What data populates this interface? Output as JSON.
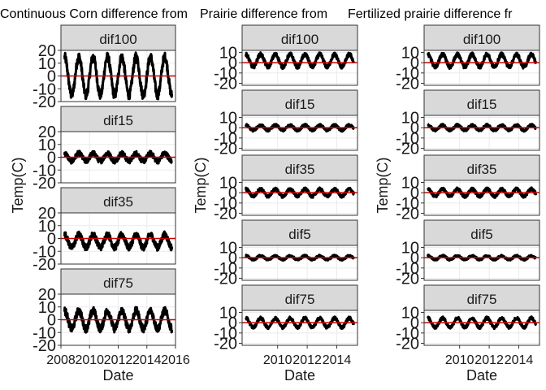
{
  "chart_data": [
    {
      "type": "line",
      "title": "Continuous Corn difference from",
      "xlabel": "Date",
      "ylabel": "Temp(C)",
      "x_range": [
        2008,
        2016
      ],
      "x_ticks": [
        "2008",
        "2010",
        "2012",
        "2014",
        "2016"
      ],
      "y_ticks": [
        "-20",
        "-10",
        "0",
        "10",
        "20"
      ],
      "reference_line": {
        "y": 0,
        "color": "#cc0000"
      },
      "panels": [
        {
          "name": "dif100",
          "ylim": [
            -20,
            20
          ],
          "amplitude": 15,
          "offset": 0,
          "noise": 3.5
        },
        {
          "name": "dif15",
          "ylim": [
            -20,
            20
          ],
          "amplitude": 3,
          "offset": 0,
          "noise": 2
        },
        {
          "name": "dif35",
          "ylim": [
            -20,
            20
          ],
          "amplitude": 5,
          "offset": -2,
          "noise": 2.5
        },
        {
          "name": "dif75",
          "ylim": [
            -20,
            20
          ],
          "amplitude": 7,
          "offset": 0,
          "noise": 3
        }
      ]
    },
    {
      "type": "line",
      "title": "Prairie difference from",
      "xlabel": "Date",
      "ylabel": "Temp(C)",
      "x_range": [
        2007.6,
        2015.4
      ],
      "x_ticks": [
        "2010",
        "2012",
        "2014"
      ],
      "y_ticks": [
        "-20",
        "-10",
        "0",
        "10"
      ],
      "reference_line": {
        "y": 0,
        "color": "#cc0000"
      },
      "panels": [
        {
          "name": "dif100",
          "ylim": [
            -22,
            12
          ],
          "amplitude": 6,
          "offset": 2,
          "noise": 2
        },
        {
          "name": "dif15",
          "ylim": [
            -22,
            12
          ],
          "amplitude": 2.5,
          "offset": 0,
          "noise": 1.2
        },
        {
          "name": "dif35",
          "ylim": [
            -22,
            12
          ],
          "amplitude": 3.5,
          "offset": 0,
          "noise": 1.5
        },
        {
          "name": "dif5",
          "ylim": [
            -22,
            12
          ],
          "amplitude": 1.8,
          "offset": 0,
          "noise": 1
        },
        {
          "name": "dif75",
          "ylim": [
            -22,
            12
          ],
          "amplitude": 4.5,
          "offset": 0,
          "noise": 1.5
        }
      ]
    },
    {
      "type": "line",
      "title": "Fertilized prairie difference fr",
      "xlabel": "Date",
      "ylabel": "Temp(C)",
      "x_range": [
        2007.6,
        2015.4
      ],
      "x_ticks": [
        "2010",
        "2012",
        "2014"
      ],
      "y_ticks": [
        "-20",
        "-10",
        "0",
        "10"
      ],
      "reference_line": {
        "y": 0,
        "color": "#cc0000"
      },
      "panels": [
        {
          "name": "dif100",
          "ylim": [
            -22,
            12
          ],
          "amplitude": 6,
          "offset": 2,
          "noise": 2
        },
        {
          "name": "dif15",
          "ylim": [
            -22,
            12
          ],
          "amplitude": 2.5,
          "offset": 0,
          "noise": 1.2
        },
        {
          "name": "dif35",
          "ylim": [
            -22,
            12
          ],
          "amplitude": 3.5,
          "offset": 0,
          "noise": 1.5
        },
        {
          "name": "dif5",
          "ylim": [
            -22,
            12
          ],
          "amplitude": 1.8,
          "offset": 0,
          "noise": 1
        },
        {
          "name": "dif75",
          "ylim": [
            -22,
            12
          ],
          "amplitude": 4.5,
          "offset": 0,
          "noise": 1.5
        }
      ]
    }
  ]
}
